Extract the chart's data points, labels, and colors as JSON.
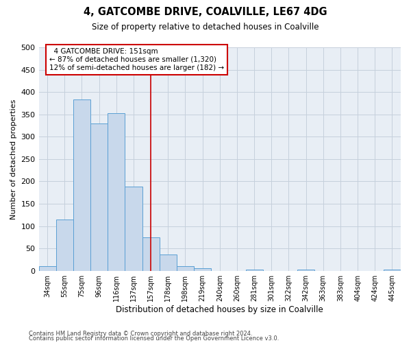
{
  "title_line1": "4, GATCOMBE DRIVE, COALVILLE, LE67 4DG",
  "title_line2": "Size of property relative to detached houses in Coalville",
  "xlabel": "Distribution of detached houses by size in Coalville",
  "ylabel": "Number of detached properties",
  "categories": [
    "34sqm",
    "55sqm",
    "75sqm",
    "96sqm",
    "116sqm",
    "137sqm",
    "157sqm",
    "178sqm",
    "198sqm",
    "219sqm",
    "240sqm",
    "260sqm",
    "281sqm",
    "301sqm",
    "322sqm",
    "342sqm",
    "363sqm",
    "383sqm",
    "404sqm",
    "424sqm",
    "445sqm"
  ],
  "values": [
    10,
    114,
    383,
    330,
    352,
    188,
    75,
    37,
    10,
    6,
    0,
    0,
    2,
    0,
    0,
    3,
    0,
    0,
    0,
    0,
    3
  ],
  "bar_color": "#c8d8eb",
  "bar_edge_color": "#5a9fd4",
  "marker_line_color": "#cc0000",
  "annotation_box_color": "#cc0000",
  "grid_color": "#c5d0dc",
  "bg_color": "#e8eef5",
  "ylim": [
    0,
    500
  ],
  "yticks": [
    0,
    50,
    100,
    150,
    200,
    250,
    300,
    350,
    400,
    450,
    500
  ],
  "footnote1": "Contains HM Land Registry data © Crown copyright and database right 2024.",
  "footnote2": "Contains public sector information licensed under the Open Government Licence v3.0.",
  "ann_line1": "4 GATCOMBE DRIVE: 151sqm",
  "ann_line2": "← 87% of detached houses are smaller (1,320)",
  "ann_line3": "12% of semi-detached houses are larger (182) →"
}
